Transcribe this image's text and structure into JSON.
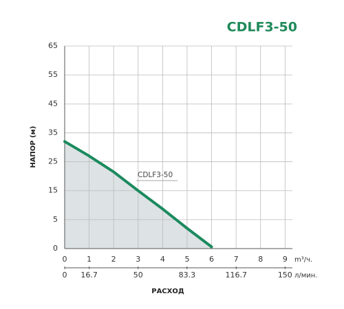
{
  "chart_data": {
    "type": "line",
    "title": "CDLF3-50",
    "y_label": "НАПОР (м)",
    "x_label": "РАСХОД",
    "x_unit": "m³/ч.",
    "x2_unit": "л/мин.",
    "x": [
      0,
      1,
      2,
      3,
      4,
      5,
      6
    ],
    "series": [
      {
        "name": "CDLF3-50",
        "color": "#1b8a5e",
        "values": [
          32,
          27,
          21.5,
          15,
          8.7,
          3.5,
          0.3
        ]
      }
    ],
    "fill_color": "#dde2e5",
    "xlim": [
      0,
      9.3
    ],
    "xticks": [
      0,
      1,
      2,
      3,
      4,
      5,
      6,
      7,
      8,
      9
    ],
    "x2lim": [
      0,
      155
    ],
    "x2ticks": [
      0,
      16.7,
      50,
      83.3,
      116.7,
      150
    ],
    "ylim": [
      0,
      65
    ],
    "yticks": [
      0,
      5,
      15,
      25,
      35,
      45,
      55,
      65
    ],
    "yscale": "piecewise",
    "grid": true
  }
}
